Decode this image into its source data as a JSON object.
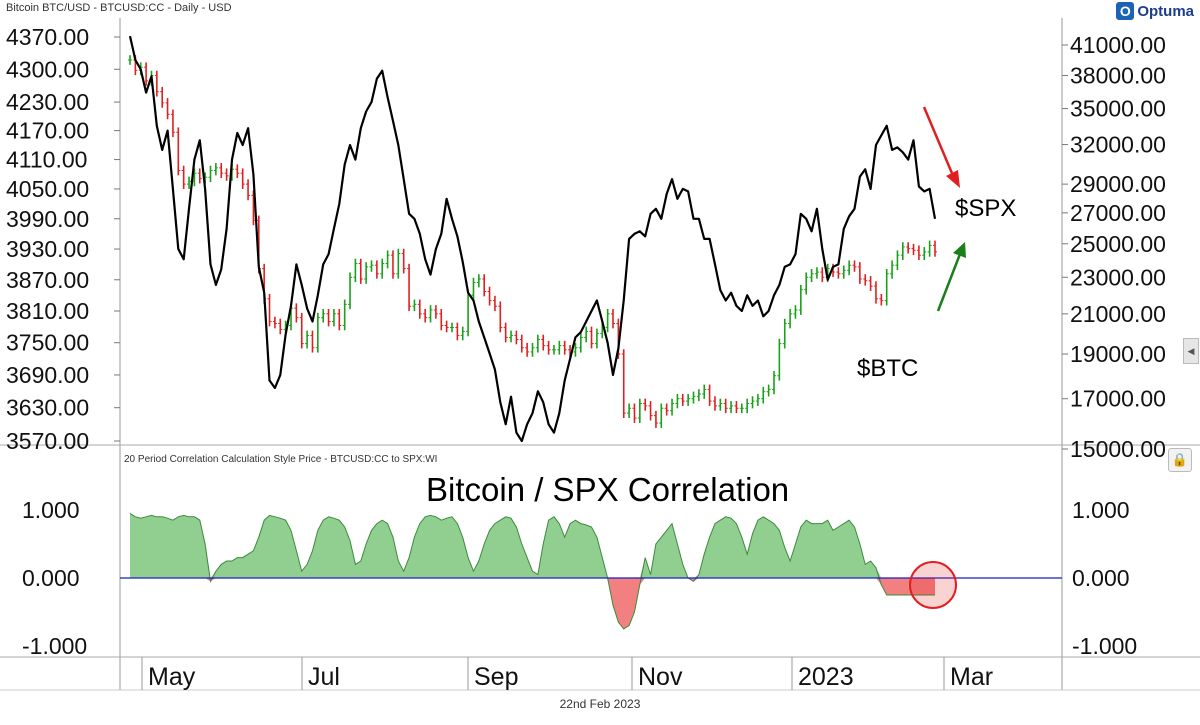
{
  "header": {
    "title": "Bitcoin BTC/USD - BTCUSD:CC - Daily - USD"
  },
  "brand": {
    "name": "Optuma",
    "mark": "optuma-logo-icon",
    "color": "#1b63b5"
  },
  "footer": {
    "date": "22nd Feb 2023"
  },
  "chart_data": [
    {
      "type": "line",
      "panel": "price",
      "left_axis": {
        "ticks": [
          4370,
          4300,
          4230,
          4170,
          4110,
          4050,
          3990,
          3930,
          3870,
          3810,
          3750,
          3690,
          3630,
          3570
        ],
        "tick_labels": [
          "4370.00",
          "4300.00",
          "4230.00",
          "4170.00",
          "4110.00",
          "4050.00",
          "3990.00",
          "3930.00",
          "3870.00",
          "3810.00",
          "3750.00",
          "3690.00",
          "3630.00",
          "3570.00"
        ],
        "scale": "log"
      },
      "right_axis": {
        "ticks": [
          41000,
          38000,
          35000,
          32000,
          29000,
          27000,
          25000,
          23000,
          21000,
          19000,
          17000,
          15000
        ],
        "tick_labels": [
          "41000.00",
          "38000.00",
          "35000.00",
          "32000.00",
          "29000.00",
          "27000.00",
          "25000.00",
          "23000.00",
          "21000.00",
          "19000.00",
          "17000.00",
          "15000.00"
        ],
        "scale": "log"
      },
      "x_axis": {
        "labels": [
          "May",
          "Jul",
          "Sep",
          "Nov",
          "2023",
          "Mar"
        ]
      },
      "series": [
        {
          "name": "$SPX",
          "axis": "left",
          "color": "#000000",
          "x": [
            0,
            2,
            4,
            6,
            8,
            10,
            12,
            14,
            16,
            18,
            20,
            22,
            24,
            26,
            28,
            30,
            32,
            34,
            36,
            38,
            40,
            42,
            44,
            46,
            48,
            50,
            52,
            54,
            56,
            58,
            60,
            62,
            64,
            66,
            68,
            70,
            72,
            74,
            76,
            78,
            80,
            82,
            84,
            86,
            88,
            90,
            92,
            94,
            96,
            98,
            100,
            102,
            104,
            106,
            108,
            110,
            112,
            114,
            116,
            118,
            120,
            122,
            124,
            126,
            128,
            130,
            132,
            134,
            136,
            138,
            140,
            142,
            144,
            146,
            148,
            150,
            152,
            154,
            156,
            158,
            160,
            162,
            164,
            166,
            168,
            170,
            172,
            174,
            176,
            178,
            180,
            182,
            184,
            186,
            188,
            190,
            192,
            194,
            196,
            198,
            200,
            202,
            204,
            206,
            208,
            210,
            212,
            214,
            216,
            218,
            220,
            222,
            224,
            226,
            228,
            230,
            232,
            234,
            236,
            238,
            240,
            242,
            244,
            246,
            248,
            250,
            252,
            254,
            256,
            258,
            260,
            262,
            264,
            266,
            268,
            270,
            272,
            274,
            276,
            278,
            280,
            282,
            284,
            286,
            288,
            290,
            292,
            294,
            296,
            298,
            300
          ],
          "y": [
            4372,
            4320,
            4300,
            4250,
            4285,
            4180,
            4130,
            4170,
            4050,
            3930,
            3910,
            4010,
            4110,
            4150,
            4050,
            3900,
            3860,
            3890,
            3970,
            4110,
            4165,
            4140,
            4175,
            4080,
            3895,
            3845,
            3680,
            3666,
            3690,
            3765,
            3820,
            3900,
            3860,
            3815,
            3790,
            3840,
            3900,
            3920,
            3970,
            4020,
            4100,
            4140,
            4110,
            4175,
            4210,
            4230,
            4280,
            4297,
            4240,
            4190,
            4140,
            4070,
            4000,
            3990,
            3960,
            3910,
            3880,
            3930,
            3960,
            4030,
            3990,
            3955,
            3905,
            3845,
            3830,
            3790,
            3760,
            3730,
            3700,
            3640,
            3600,
            3650,
            3585,
            3570,
            3600,
            3620,
            3660,
            3640,
            3600,
            3585,
            3620,
            3680,
            3720,
            3760,
            3770,
            3790,
            3810,
            3830,
            3790,
            3750,
            3690,
            3740,
            3830,
            3950,
            3960,
            3965,
            3955,
            4000,
            4010,
            3990,
            4040,
            4070,
            4030,
            4050,
            4045,
            3990,
            3990,
            3950,
            3950,
            3900,
            3850,
            3830,
            3845,
            3820,
            3810,
            3840,
            3820,
            3830,
            3800,
            3810,
            3840,
            3860,
            3895,
            3900,
            3920,
            4000,
            3990,
            3965,
            4010,
            3930,
            3870,
            3895,
            3900,
            3970,
            3995,
            4010,
            4075,
            4090,
            4050,
            4140,
            4160,
            4180,
            4130,
            4135,
            4125,
            4110,
            4150,
            4055,
            4045,
            4050,
            3990
          ]
        },
        {
          "name": "$BTC",
          "axis": "right",
          "color_up": "#19a119",
          "color_down": "#e02020",
          "x": [
            0,
            2,
            4,
            6,
            8,
            10,
            12,
            14,
            16,
            18,
            20,
            22,
            24,
            26,
            28,
            30,
            32,
            34,
            36,
            38,
            40,
            42,
            44,
            46,
            48,
            50,
            52,
            54,
            56,
            58,
            60,
            62,
            64,
            66,
            68,
            70,
            72,
            74,
            76,
            78,
            80,
            82,
            84,
            86,
            88,
            90,
            92,
            94,
            96,
            98,
            100,
            102,
            104,
            106,
            108,
            110,
            112,
            114,
            116,
            118,
            120,
            122,
            124,
            126,
            128,
            130,
            132,
            134,
            136,
            138,
            140,
            142,
            144,
            146,
            148,
            150,
            152,
            154,
            156,
            158,
            160,
            162,
            164,
            166,
            168,
            170,
            172,
            174,
            176,
            178,
            180,
            182,
            184,
            186,
            188,
            190,
            192,
            194,
            196,
            198,
            200,
            202,
            204,
            206,
            208,
            210,
            212,
            214,
            216,
            218,
            220,
            222,
            224,
            226,
            228,
            230,
            232,
            234,
            236,
            238,
            240,
            242,
            244,
            246,
            248,
            250,
            252,
            254,
            256,
            258,
            260,
            262,
            264,
            266,
            268,
            270,
            272,
            274,
            276,
            278,
            280,
            282,
            284,
            286,
            288,
            290,
            292,
            294,
            296,
            298,
            300
          ],
          "y": [
            39500,
            38500,
            38800,
            37500,
            38000,
            36500,
            35500,
            34500,
            33000,
            30000,
            29000,
            29200,
            29800,
            29400,
            29500,
            30000,
            30200,
            29800,
            29600,
            30100,
            29800,
            29000,
            28200,
            26500,
            23500,
            21800,
            20600,
            20500,
            20200,
            20400,
            21300,
            20800,
            19500,
            19900,
            19300,
            20800,
            21000,
            20600,
            21000,
            20400,
            21500,
            23000,
            23800,
            22900,
            23600,
            23700,
            23200,
            23800,
            24300,
            23200,
            24400,
            23500,
            21400,
            21500,
            21000,
            20800,
            21200,
            21000,
            20400,
            20300,
            20300,
            19900,
            20100,
            22000,
            22700,
            22900,
            22200,
            21700,
            21400,
            20300,
            19800,
            19900,
            19700,
            19300,
            19100,
            19300,
            19700,
            19400,
            19200,
            19200,
            19400,
            19200,
            19100,
            19300,
            19800,
            20100,
            19500,
            20000,
            20300,
            21000,
            20500,
            19000,
            16400,
            16600,
            16200,
            16800,
            16700,
            16300,
            16000,
            16600,
            16500,
            16800,
            17000,
            16900,
            17000,
            17100,
            17200,
            17400,
            16900,
            16700,
            16800,
            16600,
            16700,
            16600,
            16600,
            16800,
            16900,
            17000,
            17300,
            17400,
            18000,
            19500,
            20500,
            21000,
            21200,
            22300,
            23000,
            23200,
            23300,
            23000,
            23500,
            23300,
            23200,
            23400,
            23700,
            23600,
            22900,
            22800,
            22500,
            21800,
            21700,
            23200,
            23700,
            24300,
            24800,
            24700,
            24600,
            24300,
            24500,
            24900,
            24500
          ]
        }
      ]
    },
    {
      "type": "area",
      "panel": "correlation",
      "title": "Bitcoin / SPX Correlation",
      "subtitle": "20 Period Correlation Calculation Style Price - BTCUSD:CC to SPX:WI",
      "y_axis": {
        "ticks": [
          1,
          0,
          -1
        ],
        "tick_labels": [
          "1.000",
          "0.000",
          "-1.000"
        ],
        "ylim": [
          -1.1,
          1.6
        ]
      },
      "zero_line_color": "#1c1cc8",
      "positive_color": "#6cbf6c",
      "negative_color": "#ee5555",
      "highlight": {
        "shape": "circle",
        "color": "#e02020",
        "target": "latest value"
      },
      "x": [
        0,
        2,
        4,
        6,
        8,
        10,
        12,
        14,
        16,
        18,
        20,
        22,
        24,
        26,
        28,
        30,
        32,
        34,
        36,
        38,
        40,
        42,
        44,
        46,
        48,
        50,
        52,
        54,
        56,
        58,
        60,
        62,
        64,
        66,
        68,
        70,
        72,
        74,
        76,
        78,
        80,
        82,
        84,
        86,
        88,
        90,
        92,
        94,
        96,
        98,
        100,
        102,
        104,
        106,
        108,
        110,
        112,
        114,
        116,
        118,
        120,
        122,
        124,
        126,
        128,
        130,
        132,
        134,
        136,
        138,
        140,
        142,
        144,
        146,
        148,
        150,
        152,
        154,
        156,
        158,
        160,
        162,
        164,
        166,
        168,
        170,
        172,
        174,
        176,
        178,
        180,
        182,
        184,
        186,
        188,
        190,
        192,
        194,
        196,
        198,
        200,
        202,
        204,
        206,
        208,
        210,
        212,
        214,
        216,
        218,
        220,
        222,
        224,
        226,
        228,
        230,
        232,
        234,
        236,
        238,
        240,
        242,
        244,
        246,
        248,
        250,
        252,
        254,
        256,
        258,
        260,
        262,
        264,
        266,
        268,
        270,
        272,
        274,
        276,
        278,
        280,
        282,
        284,
        286,
        288,
        290,
        292,
        294,
        296,
        298,
        300
      ],
      "y": [
        0.95,
        0.9,
        0.88,
        0.9,
        0.92,
        0.9,
        0.9,
        0.88,
        0.85,
        0.9,
        0.92,
        0.9,
        0.9,
        0.85,
        0.5,
        -0.05,
        0.1,
        0.2,
        0.25,
        0.25,
        0.3,
        0.3,
        0.35,
        0.4,
        0.6,
        0.85,
        0.92,
        0.9,
        0.88,
        0.85,
        0.7,
        0.4,
        0.1,
        0.2,
        0.4,
        0.7,
        0.85,
        0.9,
        0.88,
        0.85,
        0.75,
        0.55,
        0.2,
        0.25,
        0.5,
        0.7,
        0.8,
        0.85,
        0.8,
        0.6,
        0.25,
        0.1,
        0.3,
        0.6,
        0.8,
        0.9,
        0.92,
        0.9,
        0.85,
        0.88,
        0.9,
        0.8,
        0.6,
        0.3,
        0.1,
        0.25,
        0.5,
        0.7,
        0.8,
        0.85,
        0.9,
        0.88,
        0.75,
        0.5,
        0.3,
        0.1,
        0.05,
        0.5,
        0.85,
        0.9,
        0.8,
        0.6,
        0.8,
        0.85,
        0.8,
        0.78,
        0.75,
        0.6,
        0.3,
        0.0,
        -0.4,
        -0.65,
        -0.75,
        -0.7,
        -0.5,
        -0.1,
        0.3,
        0.05,
        0.5,
        0.6,
        0.7,
        0.8,
        0.5,
        0.2,
        0.0,
        -0.05,
        0.05,
        0.35,
        0.6,
        0.8,
        0.85,
        0.9,
        0.88,
        0.8,
        0.6,
        0.35,
        0.65,
        0.85,
        0.9,
        0.85,
        0.8,
        0.7,
        0.45,
        0.25,
        0.5,
        0.75,
        0.85,
        0.8,
        0.8,
        0.8,
        0.85,
        0.7,
        0.75,
        0.8,
        0.85,
        0.75,
        0.5,
        0.2,
        0.25,
        0.15,
        -0.1,
        -0.25,
        -0.25,
        -0.25,
        -0.25,
        -0.25,
        -0.25,
        -0.25,
        -0.25,
        -0.25,
        -0.25
      ]
    }
  ],
  "annotations": {
    "spx_label": "$SPX",
    "btc_label": "$BTC",
    "red_arrow_color": "#e02020",
    "green_arrow_color": "#1a7f1a"
  },
  "icons": {
    "lock": "lock-icon",
    "collapse": "collapse-arrow-icon"
  }
}
